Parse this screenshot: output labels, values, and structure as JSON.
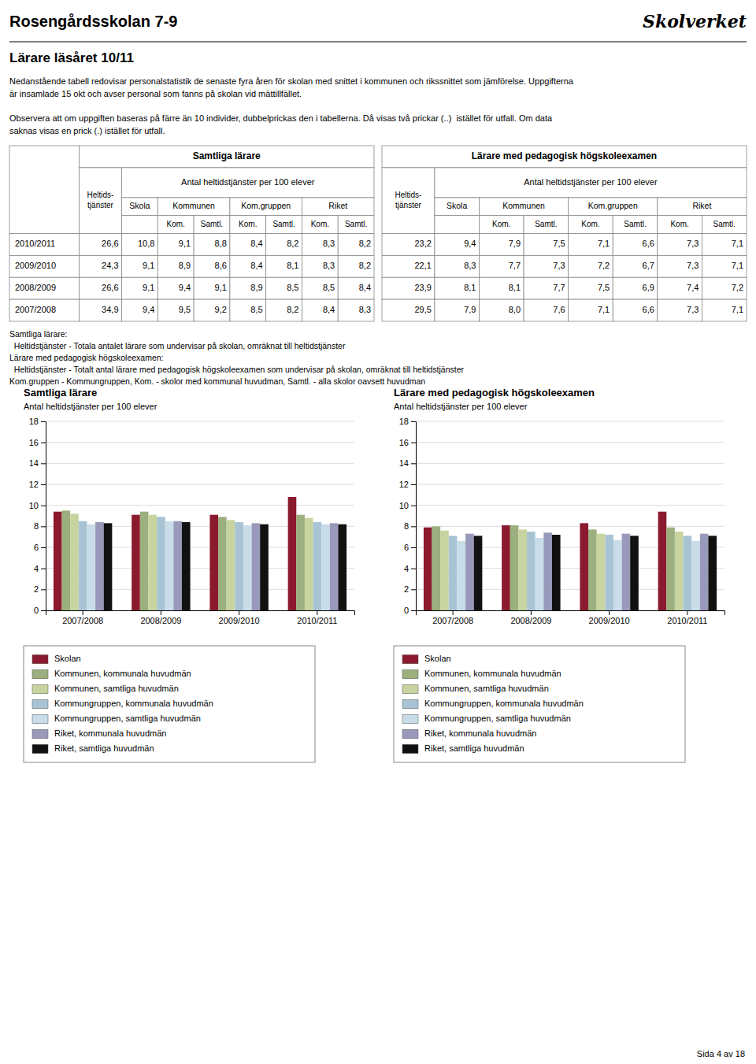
{
  "page": {
    "title": "Rosengårdsskolan 7-9",
    "brand": "Skolverket",
    "section_title": "Lärare läsåret 10/11",
    "intro_text": "Nedanstående tabell redovisar personalstatistik de senaste fyra åren för skolan med snittet i kommunen och rikssnittet som jämförelse. Uppgifterna\när insamlade 15 okt och avser personal som fanns på skolan vid mättillfället.",
    "obs_text": "Observera att om uppgiften baseras på färre än 10 individer, dubbelprickas den i tabellerna. Då visas två prickar (..)  istället för utfall. Om data\nsaknas visas en prick (.) istället för utfall.",
    "table": {
      "header_left": "Samtliga lärare",
      "header_right": "Lärare med pedagogisk högskoleexamen",
      "heltids_label": "Heltids-\ntjänster",
      "group_label": "Antal heltidstjänster per 100 elever",
      "column_groups": [
        "Skola",
        "Kommunen",
        "Kom.gruppen",
        "Riket"
      ],
      "sub_labels": [
        "Kom.",
        "Samtl."
      ],
      "years": [
        "2010/2011",
        "2009/2010",
        "2008/2009",
        "2007/2008"
      ],
      "left_rows": [
        [
          "26,6",
          "10,8",
          "9,1",
          "8,8",
          "8,4",
          "8,2",
          "8,3",
          "8,2"
        ],
        [
          "24,3",
          "9,1",
          "8,9",
          "8,6",
          "8,4",
          "8,1",
          "8,3",
          "8,2"
        ],
        [
          "26,6",
          "9,1",
          "9,4",
          "9,1",
          "8,9",
          "8,5",
          "8,5",
          "8,4"
        ],
        [
          "34,9",
          "9,4",
          "9,5",
          "9,2",
          "8,5",
          "8,2",
          "8,4",
          "8,3"
        ]
      ],
      "right_rows": [
        [
          "23,2",
          "9,4",
          "7,9",
          "7,5",
          "7,1",
          "6,6",
          "7,3",
          "7,1"
        ],
        [
          "22,1",
          "8,3",
          "7,7",
          "7,3",
          "7,2",
          "6,7",
          "7,3",
          "7,1"
        ],
        [
          "23,9",
          "8,1",
          "8,1",
          "7,7",
          "7,5",
          "6,9",
          "7,4",
          "7,2"
        ],
        [
          "29,5",
          "7,9",
          "8,0",
          "7,6",
          "7,1",
          "6,6",
          "7,3",
          "7,1"
        ]
      ]
    },
    "footnotes": [
      "Samtliga lärare:",
      "  Heltidstjänster - Totala antalet lärare som undervisar på skolan, omräknat till heltidstjänster",
      "Lärare med pedagogisk högskoleexamen:",
      "  Heltidstjänster - Totalt antal lärare med pedagogisk högskoleexamen som undervisar på skolan, omräknat till heltidstjänster",
      "Kom.gruppen - Kommungruppen, Kom. - skolor med kommunal huvudman, Samtl. - alla skolor oavsett huvudman"
    ],
    "page_number": "Sida 4 av 18"
  },
  "chart_data": [
    {
      "type": "bar",
      "title": "Samtliga lärare",
      "subtitle": "Antal heltidstjänster per 100 elever",
      "categories": [
        "2007/2008",
        "2008/2009",
        "2009/2010",
        "2010/2011"
      ],
      "series": [
        {
          "name": "Skolan",
          "color": "#8B1A2E",
          "values": [
            9.4,
            9.1,
            9.1,
            10.8
          ]
        },
        {
          "name": "Kommunen, kommunala huvudmän",
          "color": "#9CAF7E",
          "values": [
            9.5,
            9.4,
            8.9,
            9.1
          ]
        },
        {
          "name": "Kommunen, samtliga huvudmän",
          "color": "#C8D4A0",
          "values": [
            9.2,
            9.1,
            8.6,
            8.8
          ]
        },
        {
          "name": "Kommungruppen, kommunala huvudmän",
          "color": "#A8C4D4",
          "values": [
            8.5,
            8.9,
            8.4,
            8.4
          ]
        },
        {
          "name": "Kommungruppen, samtliga huvudmän",
          "color": "#C8DDE8",
          "values": [
            8.2,
            8.5,
            8.1,
            8.2
          ]
        },
        {
          "name": "Riket, kommunala huvudmän",
          "color": "#9999BB",
          "values": [
            8.4,
            8.5,
            8.3,
            8.3
          ]
        },
        {
          "name": "Riket, samtliga huvudmän",
          "color": "#111111",
          "values": [
            8.3,
            8.4,
            8.2,
            8.2
          ]
        }
      ],
      "ylim": [
        0,
        18
      ],
      "yticks": [
        0,
        2,
        4,
        6,
        8,
        10,
        12,
        14,
        16,
        18
      ],
      "grid": true,
      "legend": "bottom"
    },
    {
      "type": "bar",
      "title": "Lärare med pedagogisk högskoleexamen",
      "subtitle": "Antal heltidstjänster per 100 elever",
      "categories": [
        "2007/2008",
        "2008/2009",
        "2009/2010",
        "2010/2011"
      ],
      "series": [
        {
          "name": "Skolan",
          "color": "#8B1A2E",
          "values": [
            7.9,
            8.1,
            8.3,
            9.4
          ]
        },
        {
          "name": "Kommunen, kommunala huvudmän",
          "color": "#9CAF7E",
          "values": [
            8.0,
            8.1,
            7.7,
            7.9
          ]
        },
        {
          "name": "Kommunen, samtliga huvudmän",
          "color": "#C8D4A0",
          "values": [
            7.6,
            7.7,
            7.3,
            7.5
          ]
        },
        {
          "name": "Kommungruppen, kommunala huvudmän",
          "color": "#A8C4D4",
          "values": [
            7.1,
            7.5,
            7.2,
            7.1
          ]
        },
        {
          "name": "Kommungruppen, samtliga huvudmän",
          "color": "#C8DDE8",
          "values": [
            6.6,
            6.9,
            6.7,
            6.6
          ]
        },
        {
          "name": "Riket, kommunala huvudmän",
          "color": "#9999BB",
          "values": [
            7.3,
            7.4,
            7.3,
            7.3
          ]
        },
        {
          "name": "Riket, samtliga huvudmän",
          "color": "#111111",
          "values": [
            7.1,
            7.2,
            7.1,
            7.1
          ]
        }
      ],
      "ylim": [
        0,
        18
      ],
      "yticks": [
        0,
        2,
        4,
        6,
        8,
        10,
        12,
        14,
        16,
        18
      ],
      "grid": true,
      "legend": "bottom"
    }
  ]
}
